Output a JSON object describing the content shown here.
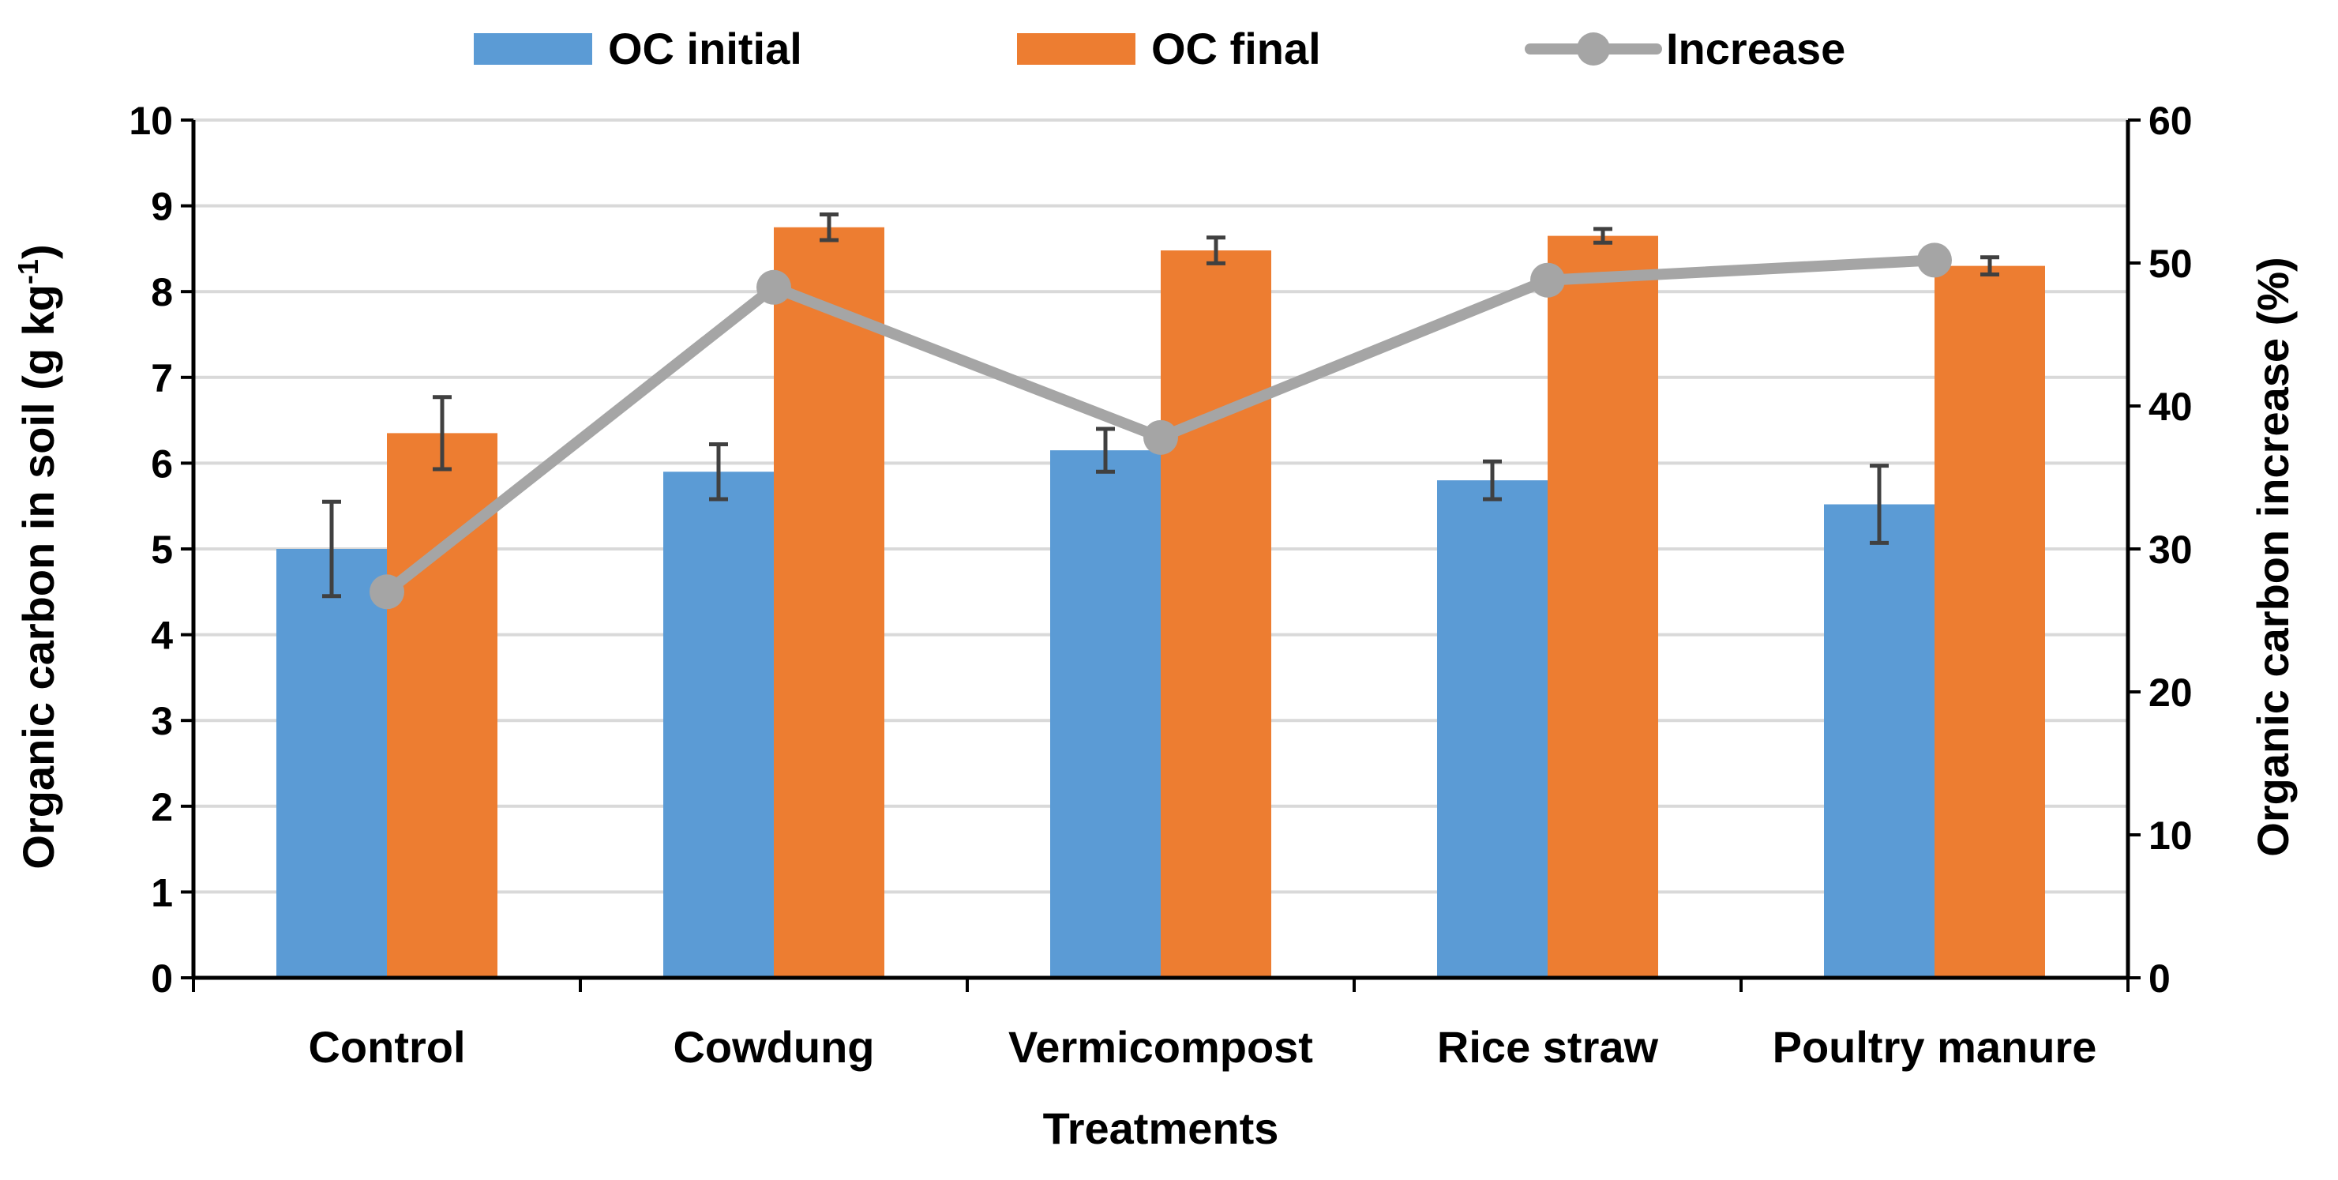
{
  "chart_data": {
    "type": "bar+line",
    "categories": [
      "Control",
      "Cowdung",
      "Vermicompost",
      "Rice straw",
      "Poultry manure"
    ],
    "series": [
      {
        "name": "OC initial",
        "axis": "left",
        "type": "bar",
        "color": "#5B9BD5",
        "values": [
          5.0,
          5.9,
          6.15,
          5.8,
          5.52
        ],
        "errors": [
          0.55,
          0.32,
          0.25,
          0.22,
          0.45
        ]
      },
      {
        "name": "OC final",
        "axis": "left",
        "type": "bar",
        "color": "#ED7D31",
        "values": [
          6.35,
          8.75,
          8.48,
          8.65,
          8.3
        ],
        "errors": [
          0.42,
          0.15,
          0.15,
          0.08,
          0.1
        ]
      },
      {
        "name": "Increase",
        "axis": "right",
        "type": "line",
        "color": "#A5A5A5",
        "values": [
          27.0,
          48.3,
          37.8,
          48.8,
          50.2
        ]
      }
    ],
    "xlabel": "Treatments",
    "ylabel_left": {
      "main": "Organic carbon in soil (g kg",
      "sup": "-1",
      "close": ")"
    },
    "ylabel_right": "Organic carbon increase (%)",
    "ylim_left": [
      0,
      10
    ],
    "yticks_left": [
      "0",
      "1",
      "2",
      "3",
      "4",
      "5",
      "6",
      "7",
      "8",
      "9",
      "10"
    ],
    "ylim_right": [
      0,
      60
    ],
    "yticks_right": [
      "0",
      "10",
      "20",
      "30",
      "40",
      "50",
      "60"
    ],
    "grid": true,
    "legend": {
      "position": "top"
    }
  }
}
